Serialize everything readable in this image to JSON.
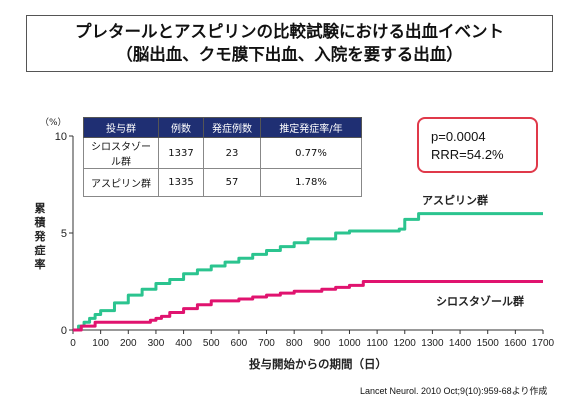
{
  "title": {
    "line1": "プレタールとアスピリンの比較試験における出血イベント",
    "line2": "（脳出血、クモ膜下出血、入院を要する出血）"
  },
  "table": {
    "headers": [
      "投与群",
      "例数",
      "発症例数",
      "推定発症率/年"
    ],
    "rows": [
      [
        "シロスタゾール群",
        "1337",
        "23",
        "0.77%"
      ],
      [
        "アスピリン群",
        "1335",
        "57",
        "1.78%"
      ]
    ]
  },
  "stats": {
    "p_value": "p=0.0004",
    "rrr": "RRR=54.2%"
  },
  "source": "Lancet Neurol. 2010 Oct;9(10):959-68より作成",
  "colors": {
    "aspirin": "#2bc48f",
    "cilostazol": "#e0136f",
    "table_header": "#1f2f73",
    "stat_border": "#e0394a"
  },
  "chart_data": {
    "type": "line",
    "xlabel": "投与開始からの期間（日）",
    "ylabel": "累積発症率",
    "y_unit": "（%）",
    "xlim": [
      0,
      1700
    ],
    "ylim": [
      0,
      10
    ],
    "x_ticks": [
      0,
      100,
      200,
      300,
      400,
      500,
      600,
      700,
      800,
      900,
      1000,
      1100,
      1200,
      1300,
      1400,
      1500,
      1600,
      1700
    ],
    "y_ticks": [
      0,
      5,
      10
    ],
    "series": [
      {
        "name": "アスピリン群",
        "color": "#2bc48f",
        "x": [
          0,
          20,
          40,
          60,
          80,
          100,
          150,
          200,
          250,
          300,
          350,
          400,
          450,
          500,
          550,
          600,
          650,
          700,
          750,
          800,
          850,
          900,
          950,
          1000,
          1050,
          1100,
          1150,
          1180,
          1200,
          1250,
          1700
        ],
        "y": [
          0,
          0.2,
          0.4,
          0.6,
          0.8,
          1.0,
          1.4,
          1.8,
          2.1,
          2.4,
          2.6,
          2.9,
          3.1,
          3.3,
          3.5,
          3.7,
          3.9,
          4.1,
          4.3,
          4.5,
          4.7,
          4.7,
          5.0,
          5.1,
          5.1,
          5.1,
          5.1,
          5.2,
          5.7,
          6.0,
          6.0
        ]
      },
      {
        "name": "シロスタゾール群",
        "color": "#e0136f",
        "x": [
          0,
          30,
          80,
          150,
          250,
          280,
          300,
          320,
          350,
          400,
          450,
          500,
          550,
          600,
          650,
          700,
          750,
          800,
          850,
          900,
          950,
          1000,
          1050,
          1100,
          1200,
          1700
        ],
        "y": [
          0,
          0.2,
          0.4,
          0.4,
          0.4,
          0.5,
          0.6,
          0.7,
          0.9,
          1.1,
          1.3,
          1.5,
          1.5,
          1.6,
          1.7,
          1.8,
          1.9,
          2.0,
          2.0,
          2.1,
          2.2,
          2.3,
          2.5,
          2.5,
          2.5,
          2.5
        ]
      }
    ]
  }
}
